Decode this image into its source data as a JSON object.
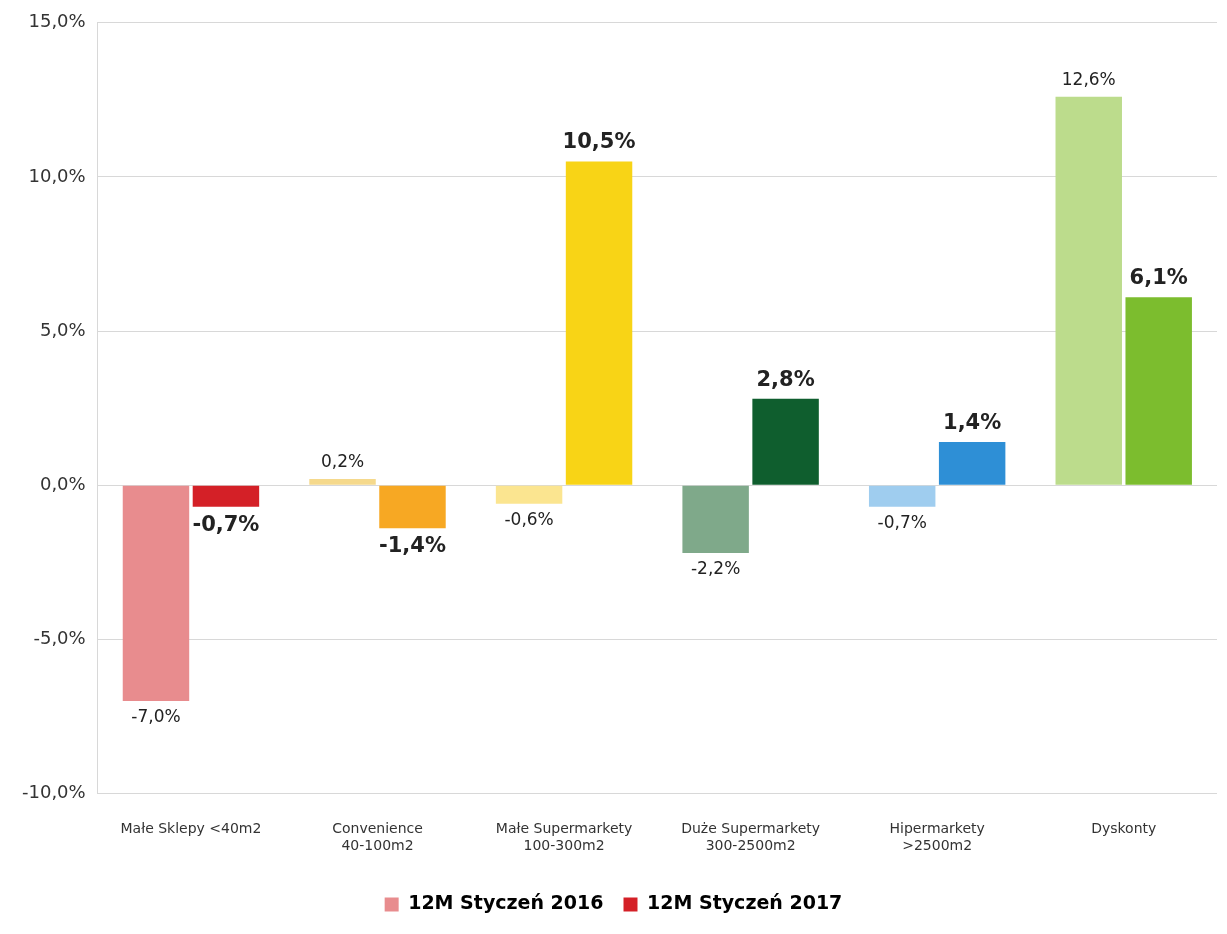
{
  "chart_data": {
    "type": "bar",
    "categories": [
      "Małe Sklepy <40m2",
      "Convenience 40-100m2",
      "Małe Supermarkety 100-300m2",
      "Duże Supermarkety 300-2500m2",
      "Hipermarkety >2500m2",
      "Dyskonty"
    ],
    "series": [
      {
        "name": "12M Styczeń 2016",
        "color": "#e88c8e",
        "colors": [
          "#e88c8e",
          "#f5d98c",
          "#fbe590",
          "#7fa98a",
          "#9fcdef",
          "#bcdc8c"
        ],
        "values": [
          -7.0,
          0.2,
          -0.6,
          -2.2,
          -0.7,
          12.6
        ],
        "value_labels": [
          "-7,0%",
          "0,2%",
          "-0,6%",
          "-2,2%",
          "-0,7%",
          "12,6%"
        ]
      },
      {
        "name": "12M Styczeń 2017",
        "color": "#d42027",
        "colors": [
          "#d42027",
          "#f7a823",
          "#f8d416",
          "#0f5e2e",
          "#2e8fd6",
          "#7cbd2e"
        ],
        "values": [
          -0.7,
          -1.4,
          10.5,
          2.8,
          1.4,
          6.1
        ],
        "value_labels": [
          "-0,7%",
          "-1,4%",
          "10,5%",
          "2,8%",
          "1,4%",
          "6,1%"
        ]
      }
    ],
    "ylim": [
      -10,
      15
    ],
    "yticks": [
      {
        "value": -10,
        "label": "-10,0%"
      },
      {
        "value": -5,
        "label": "-5,0%"
      },
      {
        "value": 0,
        "label": "0,0%"
      },
      {
        "value": 5,
        "label": "5,0%"
      },
      {
        "value": 10,
        "label": "10,0%"
      },
      {
        "value": 15,
        "label": "15,0%"
      }
    ],
    "grid": "y",
    "legend": "bottom"
  }
}
